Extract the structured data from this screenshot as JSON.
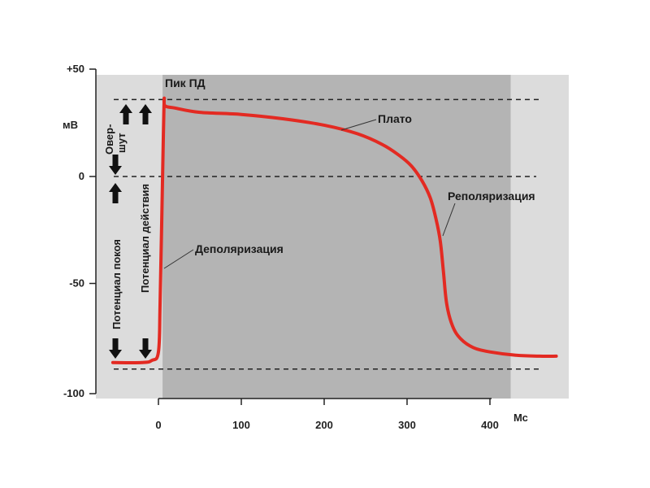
{
  "chart_data": {
    "type": "line",
    "ylabel": "мВ",
    "xlabel": "Мс",
    "xlim": [
      -60,
      480
    ],
    "ylim": [
      -100,
      50
    ],
    "x_ticks": [
      0,
      100,
      200,
      300,
      400
    ],
    "x_tick_labels": [
      "0",
      "100",
      "200",
      "300",
      "400"
    ],
    "y_ticks": [
      50,
      0,
      -50,
      -100
    ],
    "y_tick_labels": [
      "+50",
      "0",
      "-50",
      "-100"
    ],
    "reference_lines": [
      36,
      0,
      -90
    ],
    "shaded_region": {
      "x_from": 5,
      "x_to": 425,
      "label": ""
    },
    "series": [
      {
        "color": "#e32a22",
        "x": [
          -55,
          -20,
          -8,
          0,
          2,
          4,
          6,
          7,
          8,
          20,
          50,
          100,
          150,
          200,
          240,
          270,
          290,
          305,
          318,
          328,
          335,
          340,
          344,
          348,
          355,
          365,
          380,
          400,
          430,
          460,
          480
        ],
        "y": [
          -87,
          -87,
          -86,
          -82,
          -60,
          -20,
          20,
          36,
          33,
          32,
          30,
          29,
          27,
          24,
          20,
          15,
          10,
          5,
          -2,
          -10,
          -20,
          -30,
          -45,
          -60,
          -70,
          -76,
          -80,
          -82,
          -83.5,
          -84,
          -84
        ]
      }
    ],
    "annotations": [
      {
        "text": "Пик ПД"
      },
      {
        "text": "Плато"
      },
      {
        "text": "Реполяризация"
      },
      {
        "text": "Деполяризация"
      },
      {
        "text": "Овер-"
      },
      {
        "text": "шут"
      },
      {
        "text": "Потенциал покоя"
      },
      {
        "text": "Потенциал действия"
      }
    ]
  }
}
